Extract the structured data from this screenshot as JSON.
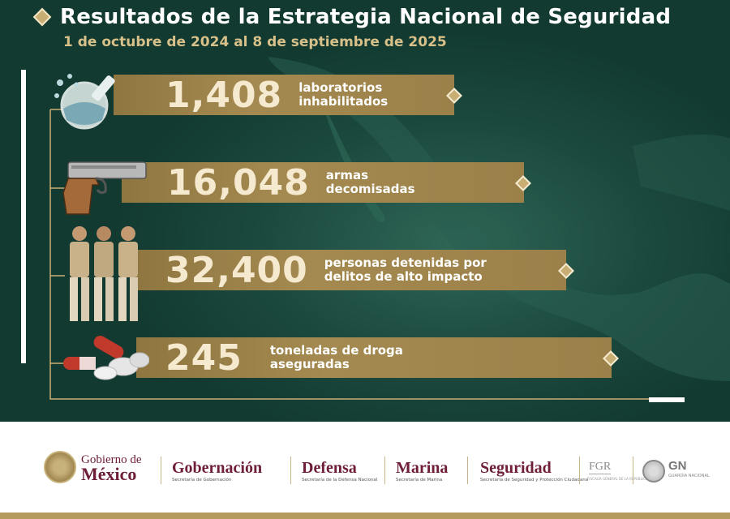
{
  "header": {
    "title": "Resultados de la Estrategia Nacional de Seguridad",
    "subtitle": "1 de octubre de 2024 al 8 de septiembre de 2025"
  },
  "stats": [
    {
      "value": "1,408",
      "label_line1": "laboratorios",
      "label_line2": "inhabilitados",
      "icon": "lab-flask-icon"
    },
    {
      "value": "16,048",
      "label_line1": "armas",
      "label_line2": "decomisadas",
      "icon": "pistol-icon"
    },
    {
      "value": "32,400",
      "label_line1": "personas detenidas por",
      "label_line2": "delitos de alto impacto",
      "icon": "detainees-icon"
    },
    {
      "value": "245",
      "label_line1": "toneladas de droga",
      "label_line2": "aseguradas",
      "icon": "pills-icon"
    }
  ],
  "footer": {
    "gobierno": {
      "line1": "Gobierno de",
      "line2": "México"
    },
    "agencies": [
      {
        "name": "Gobernación",
        "sub": "Secretaría de Gobernación"
      },
      {
        "name": "Defensa",
        "sub": "Secretaría de la Defensa Nacional"
      },
      {
        "name": "Marina",
        "sub": "Secretaría de Marina"
      },
      {
        "name": "Seguridad",
        "sub": "Secretaría de Seguridad y Protección Ciudadana"
      }
    ],
    "fgr": {
      "name": "FGR",
      "sub": "FISCALÍA GENERAL DE LA REPÚBLICA"
    },
    "gn": {
      "name": "GN",
      "sub": "GUARDIA NACIONAL"
    }
  },
  "colors": {
    "background": "#1c4a3f",
    "band": "#a48a50",
    "gold": "#c9ae74",
    "guinda": "#6e1e36"
  }
}
